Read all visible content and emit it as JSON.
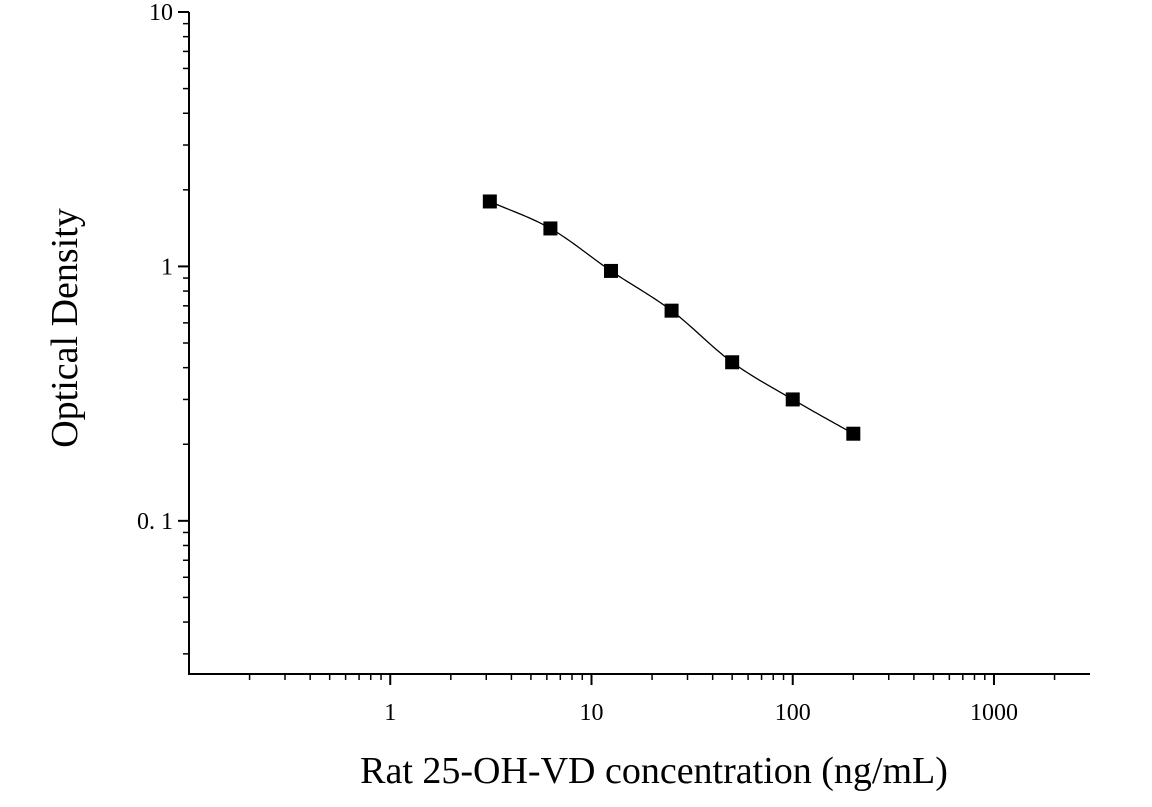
{
  "chart_data": {
    "type": "scatter",
    "title": "",
    "xlabel": "Rat 25-OH-VD concentration (ng/mL)",
    "ylabel": "Optical Density",
    "x_scale": "log",
    "y_scale": "log",
    "xlim": [
      0.1,
      3000
    ],
    "ylim": [
      0.025,
      10
    ],
    "x_ticks": [
      {
        "value": 1,
        "label": "1"
      },
      {
        "value": 10,
        "label": "10"
      },
      {
        "value": 100,
        "label": "100"
      },
      {
        "value": 1000,
        "label": "1000"
      }
    ],
    "y_ticks": [
      {
        "value": 0.1,
        "label": "0. 1"
      },
      {
        "value": 1,
        "label": "1"
      },
      {
        "value": 10,
        "label": "10"
      }
    ],
    "grid": false,
    "legend": "none",
    "series": [
      {
        "marker": "square",
        "color": "#000000",
        "x": [
          3.125,
          6.25,
          12.5,
          25,
          50,
          100,
          200
        ],
        "y": [
          1.8,
          1.41,
          0.96,
          0.67,
          0.42,
          0.3,
          0.22
        ]
      }
    ],
    "fit_curve": {
      "type": "four-parameter-logistic",
      "color": "#000000",
      "x_range": [
        3.125,
        200
      ]
    }
  }
}
